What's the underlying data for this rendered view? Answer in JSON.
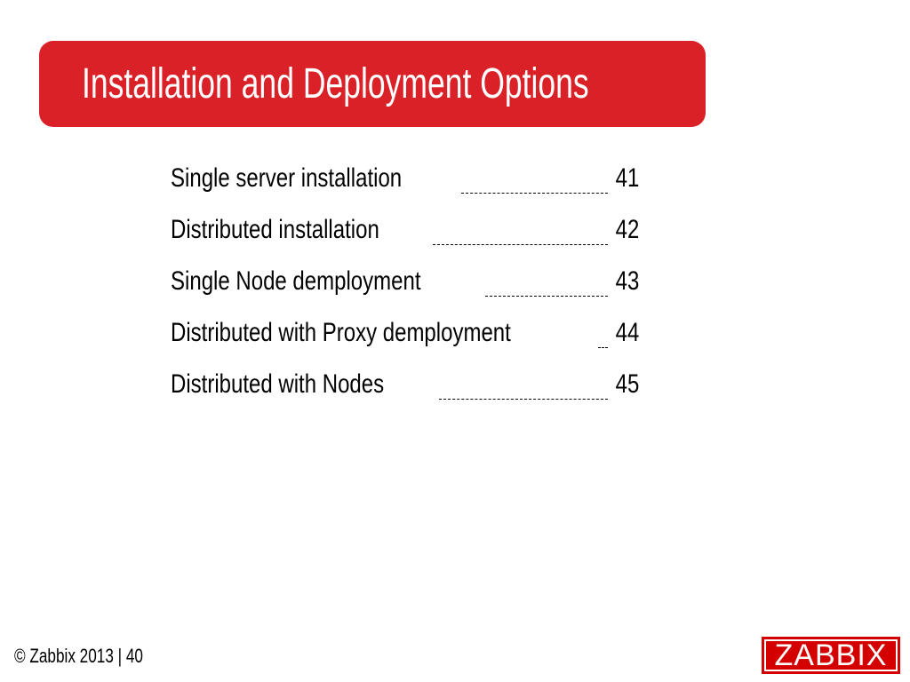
{
  "slide": {
    "title": "Installation and Deployment Options",
    "accent_color": "#da2127"
  },
  "toc": [
    {
      "label": "Single server installation",
      "page": "41"
    },
    {
      "label": "Distributed installation",
      "page": "42"
    },
    {
      "label": "Single Node demployment",
      "page": "43"
    },
    {
      "label": "Distributed with Proxy demployment",
      "page": "44"
    },
    {
      "label": "Distributed with Nodes",
      "page": "45"
    }
  ],
  "footer": {
    "text": "© Zabbix 2013 | 40"
  },
  "logo": {
    "text": "ZABBIX",
    "color": "#d40000"
  }
}
